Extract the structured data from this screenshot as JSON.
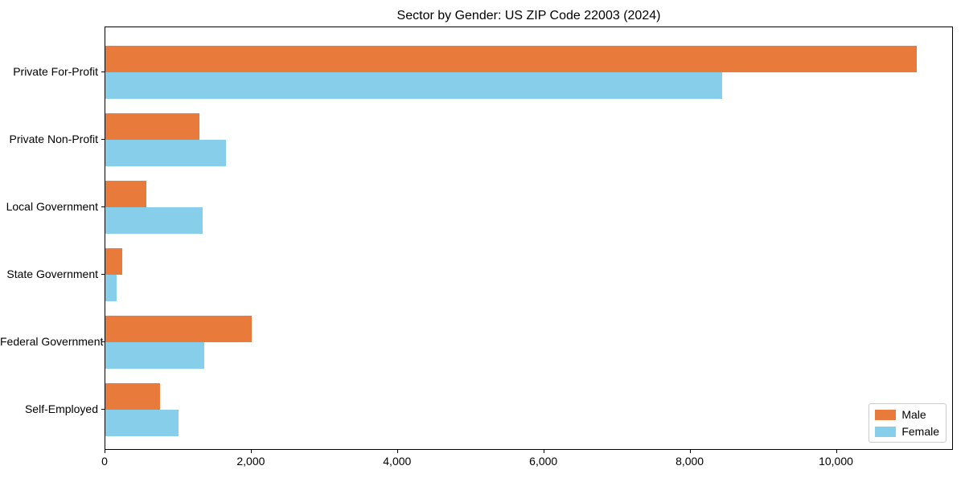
{
  "chart_data": {
    "type": "bar",
    "orientation": "horizontal",
    "title": "Sector by Gender: US ZIP Code 22003 (2024)",
    "categories": [
      "Private For-Profit",
      "Private Non-Profit",
      "Local Government",
      "State Government",
      "Federal Government",
      "Self-Employed"
    ],
    "series": [
      {
        "name": "Male",
        "color": "#E87A3C",
        "values": [
          11090,
          1290,
          565,
          230,
          2000,
          745
        ]
      },
      {
        "name": "Female",
        "color": "#87CEEB",
        "values": [
          8430,
          1650,
          1330,
          150,
          1350,
          995
        ]
      }
    ],
    "xlim": [
      0,
      11600
    ],
    "xticks": [
      0,
      2000,
      4000,
      6000,
      8000,
      10000
    ],
    "xtick_labels": [
      "0",
      "2,000",
      "4,000",
      "6,000",
      "8,000",
      "10,000"
    ],
    "xlabel": "",
    "ylabel": "",
    "grid": false,
    "legend_position": "lower right",
    "frame_color": "#000000",
    "background_color": "#ffffff"
  }
}
